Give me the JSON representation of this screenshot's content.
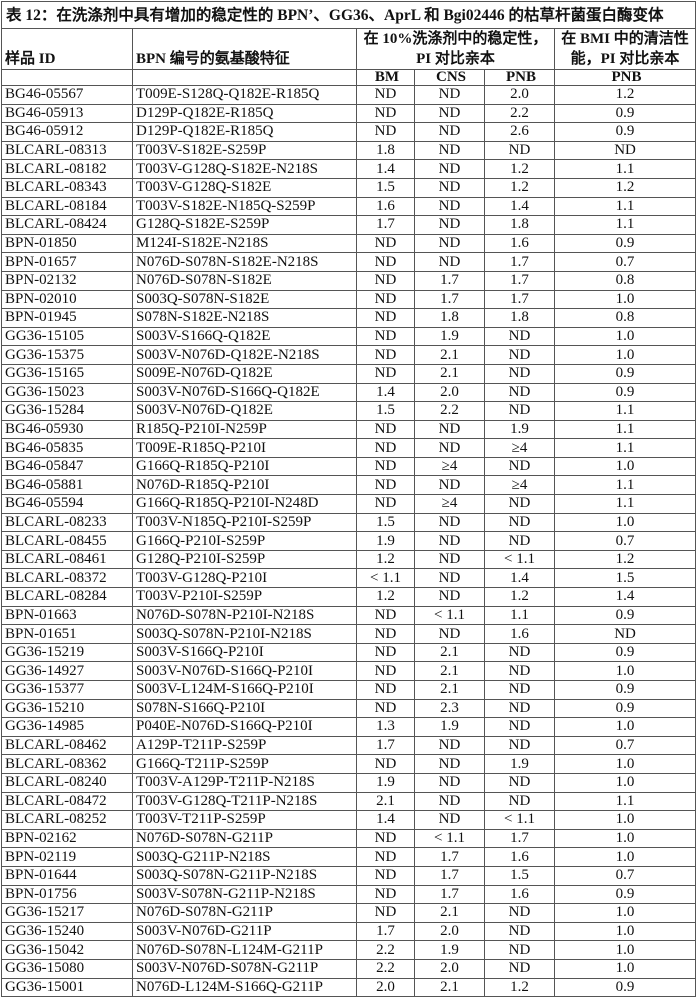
{
  "title": "表 12：在洗涤剂中具有增加的稳定性的 BPN’、GG36、AprL 和 Bgi02446 的枯草杆菌蛋白酶变体",
  "headers": {
    "sample_id": "样品 ID",
    "features": "BPN 编号的氨基酸特征",
    "stability": "在 10%洗涤剂中的稳定性，PI 对比亲本",
    "cleaning": "在 BMI 中的清洁性能，PI 对比亲本",
    "sub": [
      "BM",
      "CNS",
      "PNB",
      "PNB"
    ]
  },
  "rows": [
    [
      "BG46-05567",
      "T009E-S128Q-Q182E-R185Q",
      "ND",
      "ND",
      "2.0",
      "1.2"
    ],
    [
      "BG46-05913",
      "D129P-Q182E-R185Q",
      "ND",
      "ND",
      "2.2",
      "0.9"
    ],
    [
      "BG46-05912",
      "D129P-Q182E-R185Q",
      "ND",
      "ND",
      "2.6",
      "0.9"
    ],
    [
      "BLCARL-08313",
      "T003V-S182E-S259P",
      "1.8",
      "ND",
      "ND",
      "ND"
    ],
    [
      "BLCARL-08182",
      "T003V-G128Q-S182E-N218S",
      "1.4",
      "ND",
      "1.2",
      "1.1"
    ],
    [
      "BLCARL-08343",
      "T003V-G128Q-S182E",
      "1.5",
      "ND",
      "1.2",
      "1.2"
    ],
    [
      "BLCARL-08184",
      "T003V-S182E-N185Q-S259P",
      "1.6",
      "ND",
      "1.4",
      "1.1"
    ],
    [
      "BLCARL-08424",
      "G128Q-S182E-S259P",
      "1.7",
      "ND",
      "1.8",
      "1.1"
    ],
    [
      "BPN-01850",
      "M124I-S182E-N218S",
      "ND",
      "ND",
      "1.6",
      "0.9"
    ],
    [
      "BPN-01657",
      "N076D-S078N-S182E-N218S",
      "ND",
      "ND",
      "1.7",
      "0.7"
    ],
    [
      "BPN-02132",
      "N076D-S078N-S182E",
      "ND",
      "1.7",
      "1.7",
      "0.8"
    ],
    [
      "BPN-02010",
      "S003Q-S078N-S182E",
      "ND",
      "1.7",
      "1.7",
      "1.0"
    ],
    [
      "BPN-01945",
      "S078N-S182E-N218S",
      "ND",
      "1.8",
      "1.8",
      "0.8"
    ],
    [
      "GG36-15105",
      "S003V-S166Q-Q182E",
      "ND",
      "1.9",
      "ND",
      "1.0"
    ],
    [
      "GG36-15375",
      "S003V-N076D-Q182E-N218S",
      "ND",
      "2.1",
      "ND",
      "1.0"
    ],
    [
      "GG36-15165",
      "S009E-N076D-Q182E",
      "ND",
      "2.1",
      "ND",
      "0.9"
    ],
    [
      "GG36-15023",
      "S003V-N076D-S166Q-Q182E",
      "1.4",
      "2.0",
      "ND",
      "0.9"
    ],
    [
      "GG36-15284",
      "S003V-N076D-Q182E",
      "1.5",
      "2.2",
      "ND",
      "1.1"
    ],
    [
      "BG46-05930",
      "R185Q-P210I-N259P",
      "ND",
      "ND",
      "1.9",
      "1.1"
    ],
    [
      "BG46-05835",
      "T009E-R185Q-P210I",
      "ND",
      "ND",
      "≥4",
      "1.1"
    ],
    [
      "BG46-05847",
      "G166Q-R185Q-P210I",
      "ND",
      "≥4",
      "ND",
      "1.0"
    ],
    [
      "BG46-05881",
      "N076D-R185Q-P210I",
      "ND",
      "ND",
      "≥4",
      "1.1"
    ],
    [
      "BG46-05594",
      "G166Q-R185Q-P210I-N248D",
      "ND",
      "≥4",
      "ND",
      "1.1"
    ],
    [
      "BLCARL-08233",
      "T003V-N185Q-P210I-S259P",
      "1.5",
      "ND",
      "ND",
      "1.0"
    ],
    [
      "BLCARL-08455",
      "G166Q-P210I-S259P",
      "1.9",
      "ND",
      "ND",
      "0.7"
    ],
    [
      "BLCARL-08461",
      "G128Q-P210I-S259P",
      "1.2",
      "ND",
      "< 1.1",
      "1.2"
    ],
    [
      "BLCARL-08372",
      "T003V-G128Q-P210I",
      "< 1.1",
      "ND",
      "1.4",
      "1.5"
    ],
    [
      "BLCARL-08284",
      "T003V-P210I-S259P",
      "1.2",
      "ND",
      "1.2",
      "1.4"
    ],
    [
      "BPN-01663",
      "N076D-S078N-P210I-N218S",
      "ND",
      "< 1.1",
      "1.1",
      "0.9"
    ],
    [
      "BPN-01651",
      "S003Q-S078N-P210I-N218S",
      "ND",
      "ND",
      "1.6",
      "ND"
    ],
    [
      "GG36-15219",
      "S003V-S166Q-P210I",
      "ND",
      "2.1",
      "ND",
      "0.9"
    ],
    [
      "GG36-14927",
      "S003V-N076D-S166Q-P210I",
      "ND",
      "2.1",
      "ND",
      "1.0"
    ],
    [
      "GG36-15377",
      "S003V-L124M-S166Q-P210I",
      "ND",
      "2.1",
      "ND",
      "0.9"
    ],
    [
      "GG36-15210",
      "S078N-S166Q-P210I",
      "ND",
      "2.3",
      "ND",
      "0.9"
    ],
    [
      "GG36-14985",
      "P040E-N076D-S166Q-P210I",
      "1.3",
      "1.9",
      "ND",
      "1.0"
    ],
    [
      "BLCARL-08462",
      "A129P-T211P-S259P",
      "1.7",
      "ND",
      "ND",
      "0.7"
    ],
    [
      "BLCARL-08362",
      "G166Q-T211P-S259P",
      "ND",
      "ND",
      "1.9",
      "1.0"
    ],
    [
      "BLCARL-08240",
      "T003V-A129P-T211P-N218S",
      "1.9",
      "ND",
      "ND",
      "1.0"
    ],
    [
      "BLCARL-08472",
      "T003V-G128Q-T211P-N218S",
      "2.1",
      "ND",
      "ND",
      "1.1"
    ],
    [
      "BLCARL-08252",
      "T003V-T211P-S259P",
      "1.4",
      "ND",
      "< 1.1",
      "1.0"
    ],
    [
      "BPN-02162",
      "N076D-S078N-G211P",
      "ND",
      "< 1.1",
      "1.7",
      "1.0"
    ],
    [
      "BPN-02119",
      "S003Q-G211P-N218S",
      "ND",
      "1.7",
      "1.6",
      "1.0"
    ],
    [
      "BPN-01644",
      "S003Q-S078N-G211P-N218S",
      "ND",
      "1.7",
      "1.5",
      "0.7"
    ],
    [
      "BPN-01756",
      "S003V-S078N-G211P-N218S",
      "ND",
      "1.7",
      "1.6",
      "0.9"
    ],
    [
      "GG36-15217",
      "N076D-S078N-G211P",
      "ND",
      "2.1",
      "ND",
      "1.0"
    ],
    [
      "GG36-15240",
      "S003V-N076D-G211P",
      "1.7",
      "2.0",
      "ND",
      "1.0"
    ],
    [
      "GG36-15042",
      "N076D-S078N-L124M-G211P",
      "2.2",
      "1.9",
      "ND",
      "1.0"
    ],
    [
      "GG36-15080",
      "S003V-N076D-S078N-G211P",
      "2.2",
      "2.0",
      "ND",
      "1.0"
    ],
    [
      "GG36-15001",
      "N076D-L124M-S166Q-G211P",
      "2.0",
      "2.1",
      "1.2",
      "0.9"
    ]
  ]
}
